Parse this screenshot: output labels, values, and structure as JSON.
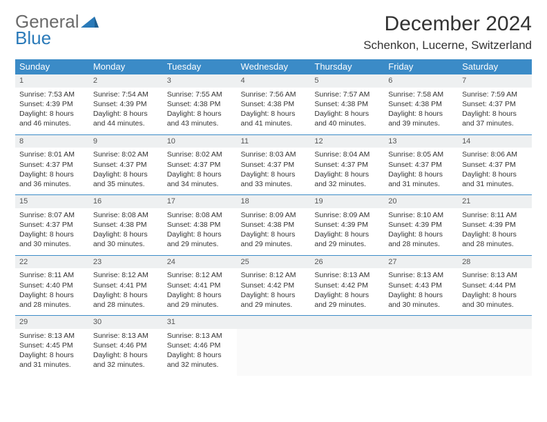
{
  "brand": {
    "line1": "General",
    "line2": "Blue",
    "line1_color": "#6a6a6a",
    "line2_color": "#2a7ab9"
  },
  "title": "December 2024",
  "location": "Schenkon, Lucerne, Switzerland",
  "colors": {
    "header_bg": "#3b8bc7",
    "header_fg": "#ffffff",
    "daynum_bg": "#eef0f1",
    "rule": "#3b8bc7",
    "text": "#333333"
  },
  "day_headers": [
    "Sunday",
    "Monday",
    "Tuesday",
    "Wednesday",
    "Thursday",
    "Friday",
    "Saturday"
  ],
  "weeks": [
    [
      {
        "n": "1",
        "sunrise": "7:53 AM",
        "sunset": "4:39 PM",
        "daylight": "8 hours and 46 minutes."
      },
      {
        "n": "2",
        "sunrise": "7:54 AM",
        "sunset": "4:39 PM",
        "daylight": "8 hours and 44 minutes."
      },
      {
        "n": "3",
        "sunrise": "7:55 AM",
        "sunset": "4:38 PM",
        "daylight": "8 hours and 43 minutes."
      },
      {
        "n": "4",
        "sunrise": "7:56 AM",
        "sunset": "4:38 PM",
        "daylight": "8 hours and 41 minutes."
      },
      {
        "n": "5",
        "sunrise": "7:57 AM",
        "sunset": "4:38 PM",
        "daylight": "8 hours and 40 minutes."
      },
      {
        "n": "6",
        "sunrise": "7:58 AM",
        "sunset": "4:38 PM",
        "daylight": "8 hours and 39 minutes."
      },
      {
        "n": "7",
        "sunrise": "7:59 AM",
        "sunset": "4:37 PM",
        "daylight": "8 hours and 37 minutes."
      }
    ],
    [
      {
        "n": "8",
        "sunrise": "8:01 AM",
        "sunset": "4:37 PM",
        "daylight": "8 hours and 36 minutes."
      },
      {
        "n": "9",
        "sunrise": "8:02 AM",
        "sunset": "4:37 PM",
        "daylight": "8 hours and 35 minutes."
      },
      {
        "n": "10",
        "sunrise": "8:02 AM",
        "sunset": "4:37 PM",
        "daylight": "8 hours and 34 minutes."
      },
      {
        "n": "11",
        "sunrise": "8:03 AM",
        "sunset": "4:37 PM",
        "daylight": "8 hours and 33 minutes."
      },
      {
        "n": "12",
        "sunrise": "8:04 AM",
        "sunset": "4:37 PM",
        "daylight": "8 hours and 32 minutes."
      },
      {
        "n": "13",
        "sunrise": "8:05 AM",
        "sunset": "4:37 PM",
        "daylight": "8 hours and 31 minutes."
      },
      {
        "n": "14",
        "sunrise": "8:06 AM",
        "sunset": "4:37 PM",
        "daylight": "8 hours and 31 minutes."
      }
    ],
    [
      {
        "n": "15",
        "sunrise": "8:07 AM",
        "sunset": "4:37 PM",
        "daylight": "8 hours and 30 minutes."
      },
      {
        "n": "16",
        "sunrise": "8:08 AM",
        "sunset": "4:38 PM",
        "daylight": "8 hours and 30 minutes."
      },
      {
        "n": "17",
        "sunrise": "8:08 AM",
        "sunset": "4:38 PM",
        "daylight": "8 hours and 29 minutes."
      },
      {
        "n": "18",
        "sunrise": "8:09 AM",
        "sunset": "4:38 PM",
        "daylight": "8 hours and 29 minutes."
      },
      {
        "n": "19",
        "sunrise": "8:09 AM",
        "sunset": "4:39 PM",
        "daylight": "8 hours and 29 minutes."
      },
      {
        "n": "20",
        "sunrise": "8:10 AM",
        "sunset": "4:39 PM",
        "daylight": "8 hours and 28 minutes."
      },
      {
        "n": "21",
        "sunrise": "8:11 AM",
        "sunset": "4:39 PM",
        "daylight": "8 hours and 28 minutes."
      }
    ],
    [
      {
        "n": "22",
        "sunrise": "8:11 AM",
        "sunset": "4:40 PM",
        "daylight": "8 hours and 28 minutes."
      },
      {
        "n": "23",
        "sunrise": "8:12 AM",
        "sunset": "4:41 PM",
        "daylight": "8 hours and 28 minutes."
      },
      {
        "n": "24",
        "sunrise": "8:12 AM",
        "sunset": "4:41 PM",
        "daylight": "8 hours and 29 minutes."
      },
      {
        "n": "25",
        "sunrise": "8:12 AM",
        "sunset": "4:42 PM",
        "daylight": "8 hours and 29 minutes."
      },
      {
        "n": "26",
        "sunrise": "8:13 AM",
        "sunset": "4:42 PM",
        "daylight": "8 hours and 29 minutes."
      },
      {
        "n": "27",
        "sunrise": "8:13 AM",
        "sunset": "4:43 PM",
        "daylight": "8 hours and 30 minutes."
      },
      {
        "n": "28",
        "sunrise": "8:13 AM",
        "sunset": "4:44 PM",
        "daylight": "8 hours and 30 minutes."
      }
    ],
    [
      {
        "n": "29",
        "sunrise": "8:13 AM",
        "sunset": "4:45 PM",
        "daylight": "8 hours and 31 minutes."
      },
      {
        "n": "30",
        "sunrise": "8:13 AM",
        "sunset": "4:46 PM",
        "daylight": "8 hours and 32 minutes."
      },
      {
        "n": "31",
        "sunrise": "8:13 AM",
        "sunset": "4:46 PM",
        "daylight": "8 hours and 32 minutes."
      },
      null,
      null,
      null,
      null
    ]
  ],
  "labels": {
    "sunrise": "Sunrise:",
    "sunset": "Sunset:",
    "daylight": "Daylight:"
  }
}
